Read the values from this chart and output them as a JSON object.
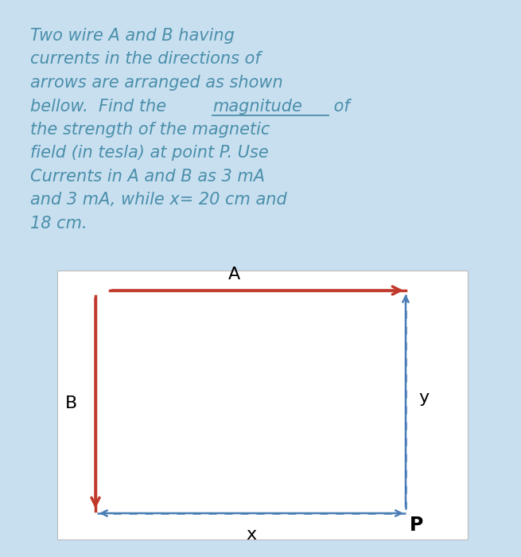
{
  "bg_outer": "#c8dff0",
  "bg_inner": "#ffffff",
  "text_color": "#4a8faa",
  "arrow_color_red": "#c0392b",
  "arrow_color_blue": "#4a7db5",
  "text_lines": [
    "Two wire A and B having",
    "currents in the directions of",
    "arrows are arranged as shown",
    "bellow.  Find the magnitude of",
    "the strength of the magnetic",
    "field (in tesla) at point P. Use",
    "Currents in A and B as 3 mA",
    "and 3 mA, while x= 20 cm and",
    "18 cm."
  ],
  "label_A": "A",
  "label_B": "B",
  "label_x": "x",
  "label_y": "y",
  "label_P": "P",
  "font_size_text": 15,
  "font_size_labels": 15
}
